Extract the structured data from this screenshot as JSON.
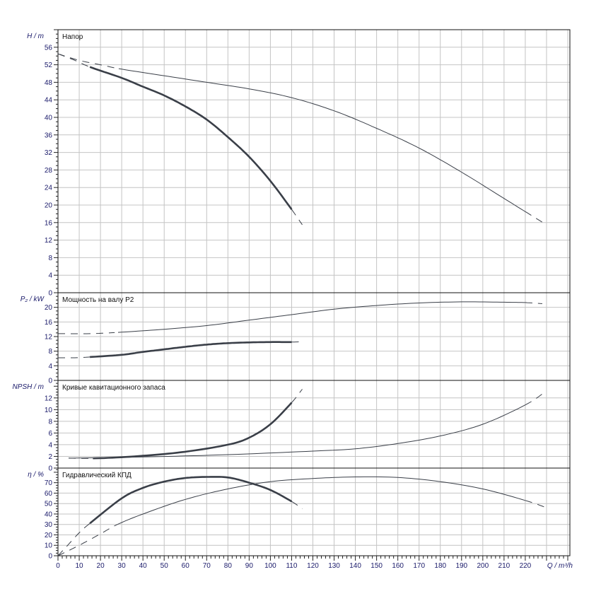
{
  "chart_data": {
    "type": "line",
    "x_axis": {
      "label": "Q / m³/h",
      "range": [
        0,
        241
      ],
      "ticks": [
        0,
        10,
        20,
        30,
        40,
        50,
        60,
        70,
        80,
        90,
        100,
        110,
        120,
        130,
        140,
        150,
        160,
        170,
        180,
        190,
        200,
        210,
        220
      ]
    },
    "grid": true,
    "panels": [
      {
        "id": "head",
        "title": "Напор",
        "ylabel": "H / m",
        "ylim": [
          0,
          60
        ],
        "yticks": [
          0,
          4,
          8,
          12,
          16,
          20,
          24,
          28,
          32,
          36,
          40,
          44,
          48,
          52,
          56
        ],
        "series": [
          {
            "weight": "thin",
            "solid_range": [
              28,
              220
            ],
            "x": [
              0,
              10,
              20,
              30,
              50,
              70,
              90,
              110,
              130,
              150,
              170,
              190,
              210,
              220,
              230
            ],
            "y": [
              54.5,
              53,
              52,
              51,
              49.5,
              48,
              46.5,
              44.5,
              41.5,
              37.5,
              33,
              27.5,
              21.5,
              18.5,
              15.5
            ]
          },
          {
            "weight": "thick",
            "solid_range": [
              15,
              110
            ],
            "x": [
              0,
              8,
              15,
              30,
              40,
              50,
              60,
              70,
              80,
              90,
              100,
              110,
              115
            ],
            "y": [
              54.5,
              53,
              51.5,
              49,
              47,
              45,
              42.5,
              39.5,
              35.5,
              31,
              25.5,
              19,
              15.5
            ]
          }
        ]
      },
      {
        "id": "power",
        "title": "Мощность на валу P2",
        "ylabel": "P₂ / kW",
        "ylim": [
          0,
          24
        ],
        "yticks": [
          0,
          4,
          8,
          12,
          16,
          20
        ],
        "series": [
          {
            "weight": "thin",
            "solid_range": [
              28,
              220
            ],
            "x": [
              0,
              15,
              30,
              50,
              70,
              90,
              110,
              130,
              150,
              170,
              190,
              210,
              220,
              228
            ],
            "y": [
              12.8,
              12.8,
              13.2,
              14,
              15,
              16.5,
              18,
              19.5,
              20.5,
              21.2,
              21.5,
              21.4,
              21.3,
              21
            ]
          },
          {
            "weight": "thick",
            "solid_range": [
              15,
              110
            ],
            "x": [
              0,
              8,
              15,
              30,
              40,
              50,
              60,
              70,
              80,
              90,
              100,
              110,
              115
            ],
            "y": [
              6.2,
              6.2,
              6.4,
              7,
              7.8,
              8.5,
              9.2,
              9.8,
              10.2,
              10.4,
              10.5,
              10.5,
              10.6
            ]
          }
        ]
      },
      {
        "id": "npsh",
        "title": "Кривые кавитационного запаса",
        "ylabel": "NPSH / m",
        "ylim": [
          0,
          15
        ],
        "yticks": [
          0,
          2,
          4,
          6,
          8,
          10,
          12
        ],
        "series": [
          {
            "weight": "thin",
            "solid_range": [
              5,
              220
            ],
            "x": [
              5,
              40,
              80,
              120,
              140,
              160,
              180,
              200,
              220,
              230
            ],
            "y": [
              1.7,
              1.9,
              2.3,
              2.9,
              3.3,
              4.2,
              5.5,
              7.5,
              10.8,
              13.2
            ]
          },
          {
            "weight": "thick",
            "solid_range": [
              15,
              110
            ],
            "x": [
              5,
              20,
              40,
              60,
              80,
              90,
              100,
              110,
              115
            ],
            "y": [
              1.7,
              1.7,
              2.1,
              2.8,
              4,
              5.2,
              7.5,
              11.2,
              13.5
            ]
          }
        ]
      },
      {
        "id": "efficiency",
        "title": "Гидравлический КПД",
        "ylabel": "η / %",
        "ylim": [
          0,
          84
        ],
        "yticks": [
          0,
          10,
          20,
          30,
          40,
          50,
          60,
          70
        ],
        "series": [
          {
            "weight": "thin",
            "solid_range": [
              28,
              220
            ],
            "x": [
              0,
              10,
              20,
              28,
              40,
              60,
              80,
              100,
              120,
              140,
              160,
              180,
              200,
              220,
              230
            ],
            "y": [
              0,
              10,
              21,
              30,
              40,
              54,
              64,
              71,
              74,
              75.5,
              75,
              71,
              64,
              53,
              46
            ]
          },
          {
            "weight": "thick",
            "solid_range": [
              15,
              110
            ],
            "x": [
              0,
              5,
              10,
              15,
              30,
              40,
              50,
              60,
              70,
              80,
              90,
              100,
              110,
              115
            ],
            "y": [
              0,
              11,
              22,
              31,
              55,
              65,
              71,
              74.5,
              75.5,
              75,
              70,
              63,
              52,
              45
            ]
          }
        ]
      }
    ]
  }
}
